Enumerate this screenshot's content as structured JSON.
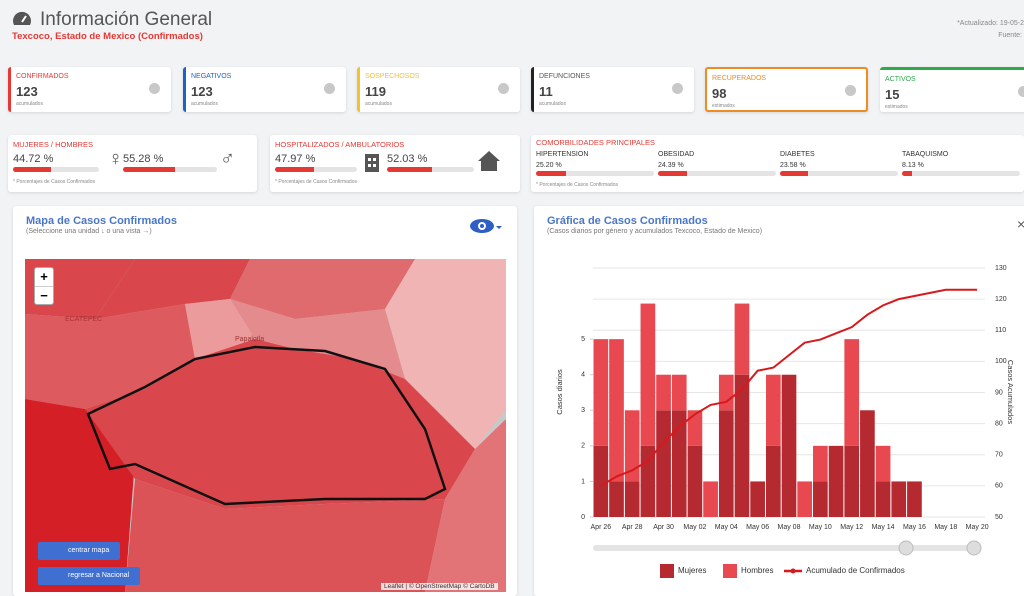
{
  "header": {
    "title": "Información General",
    "subtitle": "Texcoco, Estado de Mexico (Confirmados)",
    "updated": "*Actualizado: 19-05-2",
    "source": "Fuente:"
  },
  "cards": [
    {
      "label": "CONFIRMADOS",
      "value": 123,
      "note": "acumulados",
      "color": "#e53935"
    },
    {
      "label": "NEGATIVOS",
      "value": 123,
      "note": "acumulados",
      "color": "#1e63c4"
    },
    {
      "label": "SOSPECHOSOS",
      "value": 119,
      "note": "acumulados",
      "color": "#f2c230"
    },
    {
      "label": "DEFUNCIONES",
      "value": 11,
      "note": "acumulados",
      "color": "#222222"
    },
    {
      "label": "RECUPERADOS",
      "value": 98,
      "note": "estimados",
      "color": "#f08a24"
    },
    {
      "label": "ACTIVOS",
      "value": 15,
      "note": "estimados",
      "color": "#2eaa4a"
    }
  ],
  "gender": {
    "title": "MUJERES / HOMBRES",
    "mujeres": {
      "value": 44.72,
      "label": "44.72 %"
    },
    "hombres": {
      "value": 55.28,
      "label": "55.28 %"
    },
    "note": "* Porcentajes de Casos Confirmados"
  },
  "hospital": {
    "title": "HOSPITALIZADOS / AMBULATORIOS",
    "hospitalizados": {
      "value": 47.97,
      "label": "47.97 %"
    },
    "ambulatorios": {
      "value": 52.03,
      "label": "52.03 %"
    },
    "note": "* Porcentajes de Casos Confirmados"
  },
  "comorbidities": {
    "title": "COMORBILIDADES PRINCIPALES",
    "items": [
      {
        "name": "HIPERTENSION",
        "value": 25.2,
        "label": "25.20 %"
      },
      {
        "name": "OBESIDAD",
        "value": 24.39,
        "label": "24.39 %"
      },
      {
        "name": "DIABETES",
        "value": 23.58,
        "label": "23.58 %"
      },
      {
        "name": "TABAQUISMO",
        "value": 8.13,
        "label": "8.13 %"
      }
    ],
    "note": "* Porcentajes de Casos Confirmados"
  },
  "map": {
    "title": "Mapa de Casos Confirmados",
    "subtitle": "(Seleccione una unidad ↓ o una vista →)",
    "zoom_in": "+",
    "zoom_out": "−",
    "buttons": [
      "centrar mapa",
      "regresar a Nacional"
    ],
    "attribution": "Leaflet | © OpenStreetMap © CartoDB",
    "places": [
      "ECATEPEC",
      "Papalotla"
    ]
  },
  "chart_data": {
    "type": "bar",
    "stacked": true,
    "title": "Gráfica de Casos Confirmados",
    "subtitle": "(Casos diarios por género y acumulados Texcoco, Estado de Mexico)",
    "ylabel": "Casos diarios",
    "y2label": "Casos Acumulados",
    "categories": [
      "Apr 26",
      null,
      "Apr 28",
      null,
      "Apr 30",
      null,
      "May 02",
      null,
      "May 04",
      null,
      "May 06",
      null,
      "May 08",
      null,
      "May 10",
      null,
      "May 12",
      null,
      "May 14",
      null,
      "May 16",
      null,
      "May 18",
      null,
      "May 20"
    ],
    "series": [
      {
        "name": "Mujeres",
        "color": "#b52a31",
        "values": [
          2,
          1,
          1,
          2,
          3,
          3,
          2,
          0,
          3,
          4,
          1,
          2,
          4,
          0,
          1,
          2,
          2,
          3,
          1,
          1,
          1,
          0,
          0,
          0,
          0
        ]
      },
      {
        "name": "Hombres",
        "color": "#e8484f",
        "values": [
          3,
          4,
          2,
          4,
          1,
          1,
          1,
          1,
          1,
          2,
          0,
          2,
          0,
          1,
          1,
          0,
          3,
          0,
          1,
          0,
          0,
          0,
          0,
          0,
          0
        ]
      },
      {
        "name": "Acumulado de Confirmados",
        "type": "line",
        "axis": "y2",
        "color": "#d7191c",
        "values": [
          60,
          63,
          65,
          68,
          74,
          79,
          83,
          86,
          87,
          91,
          97,
          98,
          102,
          106,
          107,
          109,
          111,
          115,
          118,
          120,
          121,
          122,
          123,
          123,
          123
        ]
      }
    ],
    "ylim": [
      0,
      7
    ],
    "yticks": [
      0,
      1,
      2,
      3,
      4,
      5
    ],
    "y2lim": [
      50,
      130
    ],
    "y2ticks": [
      50,
      60,
      70,
      80,
      90,
      100,
      110,
      120,
      130
    ],
    "grid": true,
    "legend": "bottom"
  }
}
